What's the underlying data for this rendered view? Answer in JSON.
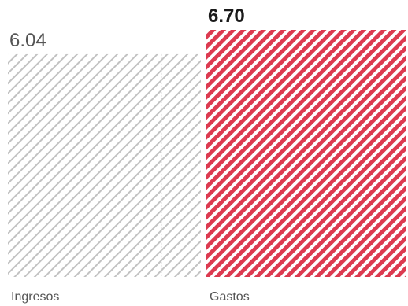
{
  "chart_data": {
    "type": "bar",
    "categories": [
      "Ingresos",
      "Gastos"
    ],
    "values": [
      6.04,
      6.7
    ],
    "value_labels": [
      "6.04",
      "6.70"
    ],
    "title": "",
    "xlabel": "",
    "ylabel": "",
    "ylim": [
      0,
      6.7
    ],
    "grid": false,
    "legend": "none",
    "colors": {
      "Ingresos": "#c2c2c2",
      "Gastos": "#dc3a50",
      "label_light": "#555555",
      "label_dark": "#1a1a1a"
    }
  }
}
